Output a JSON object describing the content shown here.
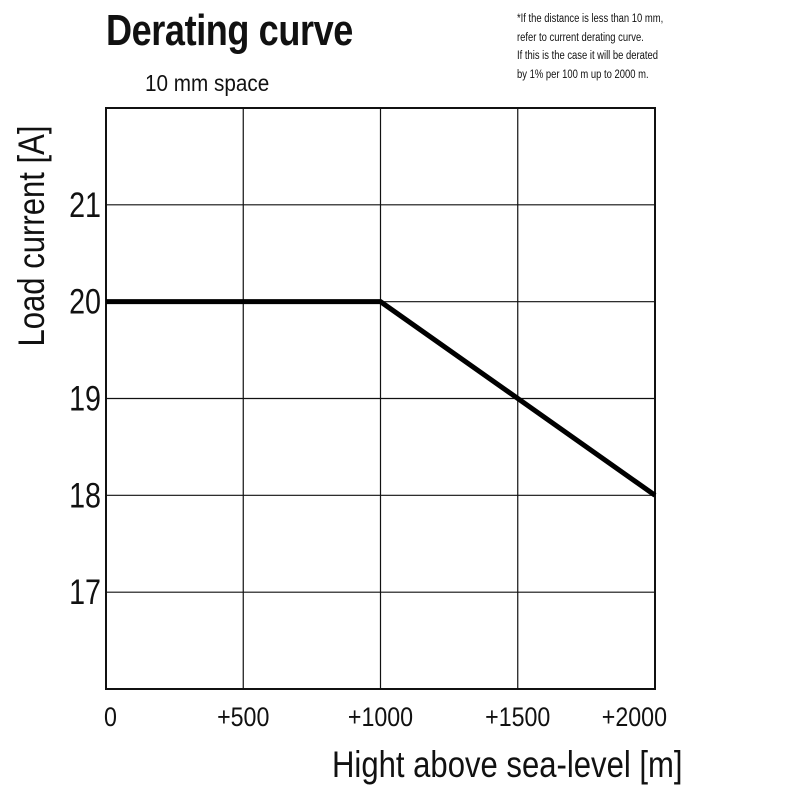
{
  "header": {
    "title": "Derating curve",
    "subtitle": "10 mm space"
  },
  "note": {
    "lines": [
      "*If the distance is less than 10 mm,",
      "refer to current derating curve.",
      " If this is the case it will be derated",
      "by 1% per 100 m up to 2000 m."
    ]
  },
  "chart_data": {
    "type": "line",
    "title": "Derating curve",
    "subtitle": "10 mm space",
    "xlabel": "Hight above sea-level [m]",
    "ylabel": "Load current [A]",
    "xlim": [
      0,
      2000
    ],
    "ylim": [
      16,
      22
    ],
    "grid": true,
    "x_ticks": [
      {
        "value": 0,
        "label": "0"
      },
      {
        "value": 500,
        "label": "+500"
      },
      {
        "value": 1000,
        "label": "+1000"
      },
      {
        "value": 1500,
        "label": "+1500"
      },
      {
        "value": 2000,
        "label": "+2000"
      }
    ],
    "y_ticks": [
      {
        "value": 17,
        "label": "17"
      },
      {
        "value": 18,
        "label": "18"
      },
      {
        "value": 19,
        "label": "19"
      },
      {
        "value": 20,
        "label": "20"
      },
      {
        "value": 21,
        "label": "21"
      }
    ],
    "series": [
      {
        "name": "Load current",
        "x": [
          0,
          1000,
          2000
        ],
        "y": [
          20,
          20,
          18
        ],
        "color": "#000000"
      }
    ]
  }
}
